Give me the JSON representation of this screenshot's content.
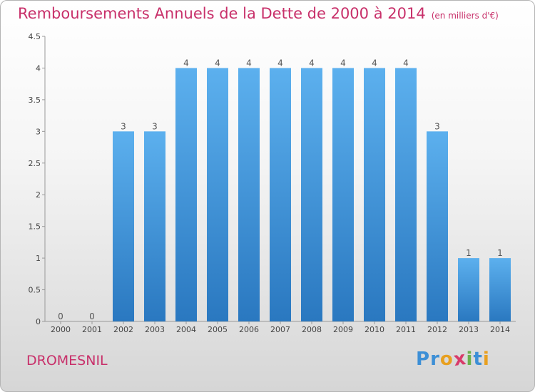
{
  "chart_data": {
    "type": "bar",
    "title": "Remboursements Annuels de la Dette de 2000 à 2014",
    "subtitle": "(en milliers d'€)",
    "categories": [
      "2000",
      "2001",
      "2002",
      "2003",
      "2004",
      "2005",
      "2006",
      "2007",
      "2008",
      "2009",
      "2010",
      "2011",
      "2012",
      "2013",
      "2014"
    ],
    "values": [
      0,
      0,
      3,
      3,
      4,
      4,
      4,
      4,
      4,
      4,
      4,
      4,
      3,
      1,
      1
    ],
    "data_labels": [
      "0",
      "0",
      "3",
      "3",
      "4",
      "4",
      "4",
      "4",
      "4",
      "4",
      "4",
      "4",
      "3",
      "1",
      "1"
    ],
    "yticks": [
      0,
      0.5,
      1,
      1.5,
      2,
      2.5,
      3,
      3.5,
      4,
      4.5
    ],
    "ytick_labels": [
      "0",
      "0.5",
      "1",
      "1.5",
      "2",
      "2.5",
      "3",
      "3.5",
      "4",
      "4.5"
    ],
    "ylim": [
      0,
      4.5
    ],
    "xlabel": "",
    "ylabel": "",
    "grid": false,
    "bar_color": "#4a9ede"
  },
  "commune": "DROMESNIL",
  "logo": {
    "letters": [
      "P",
      "r",
      "o",
      "x",
      "i",
      "t",
      "i"
    ],
    "colors": [
      "#3d8fd6",
      "#3d8fd6",
      "#e8a020",
      "#d83b6a",
      "#6ab04c",
      "#3d8fd6",
      "#e8a020"
    ]
  }
}
